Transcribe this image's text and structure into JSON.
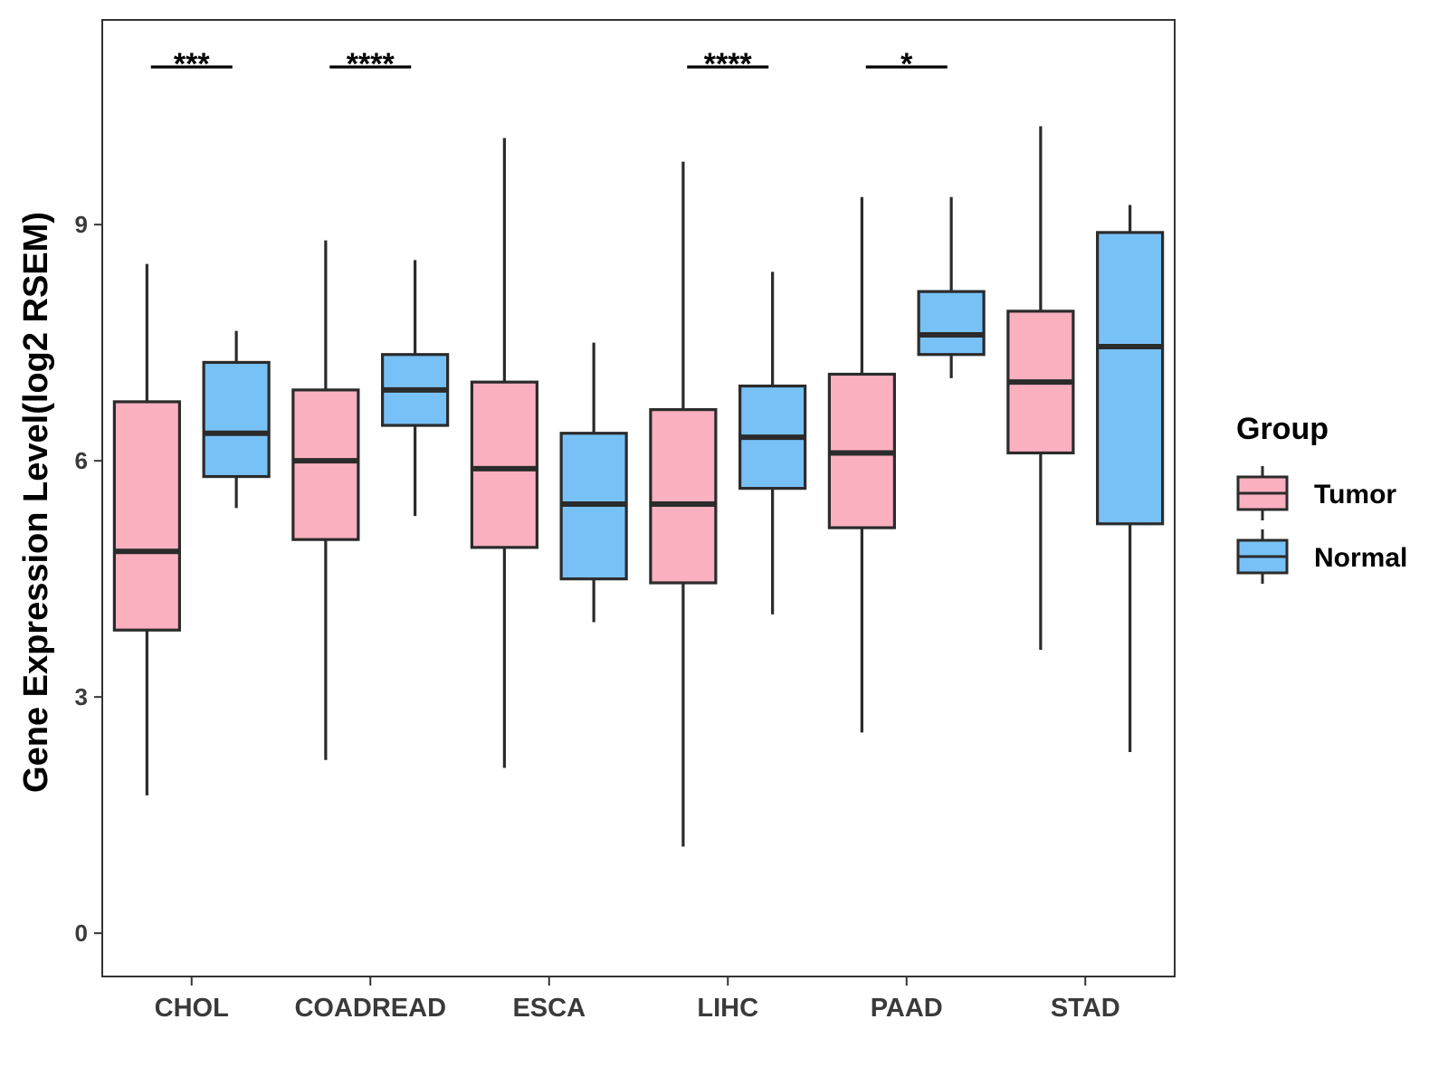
{
  "chart_data": {
    "type": "boxplot",
    "ylabel": "Gene Expression Level(log2 RSEM)",
    "xlabel": "",
    "ylim": [
      -0.55,
      11.6
    ],
    "yticks": [
      0,
      3,
      6,
      9
    ],
    "categories": [
      "CHOL",
      "COADREAD",
      "ESCA",
      "LIHC",
      "PAAD",
      "STAD"
    ],
    "legend": {
      "title": "Group",
      "position": "right",
      "entries": [
        {
          "name": "Tumor",
          "color": "#FBB0C0"
        },
        {
          "name": "Normal",
          "color": "#78C1F7"
        }
      ]
    },
    "series": [
      {
        "name": "Tumor",
        "color": "#FBB0C0",
        "boxes": [
          {
            "category": "CHOL",
            "min": 1.75,
            "q1": 3.85,
            "median": 4.85,
            "q3": 6.75,
            "max": 8.5
          },
          {
            "category": "COADREAD",
            "min": 2.2,
            "q1": 5.0,
            "median": 6.0,
            "q3": 6.9,
            "max": 8.8
          },
          {
            "category": "ESCA",
            "min": 2.1,
            "q1": 4.9,
            "median": 5.9,
            "q3": 7.0,
            "max": 10.1
          },
          {
            "category": "LIHC",
            "min": 1.1,
            "q1": 4.45,
            "median": 5.45,
            "q3": 6.65,
            "max": 9.8
          },
          {
            "category": "PAAD",
            "min": 2.55,
            "q1": 5.15,
            "median": 6.1,
            "q3": 7.1,
            "max": 9.35
          },
          {
            "category": "STAD",
            "min": 3.6,
            "q1": 6.1,
            "median": 7.0,
            "q3": 7.9,
            "max": 10.25
          }
        ]
      },
      {
        "name": "Normal",
        "color": "#78C1F7",
        "boxes": [
          {
            "category": "CHOL",
            "min": 5.4,
            "q1": 5.8,
            "median": 6.35,
            "q3": 7.25,
            "max": 7.65
          },
          {
            "category": "COADREAD",
            "min": 5.3,
            "q1": 6.45,
            "median": 6.9,
            "q3": 7.35,
            "max": 8.55
          },
          {
            "category": "ESCA",
            "min": 3.95,
            "q1": 4.5,
            "median": 5.45,
            "q3": 6.35,
            "max": 7.5
          },
          {
            "category": "LIHC",
            "min": 4.05,
            "q1": 5.65,
            "median": 6.3,
            "q3": 6.95,
            "max": 8.4
          },
          {
            "category": "PAAD",
            "min": 7.05,
            "q1": 7.35,
            "median": 7.6,
            "q3": 8.15,
            "max": 9.35
          },
          {
            "category": "STAD",
            "min": 2.3,
            "q1": 5.2,
            "median": 7.45,
            "q3": 8.9,
            "max": 9.25
          }
        ]
      }
    ],
    "significance": [
      {
        "category": "CHOL",
        "label": "***"
      },
      {
        "category": "COADREAD",
        "label": "****"
      },
      {
        "category": "LIHC",
        "label": "****"
      },
      {
        "category": "PAAD",
        "label": "*"
      }
    ]
  }
}
